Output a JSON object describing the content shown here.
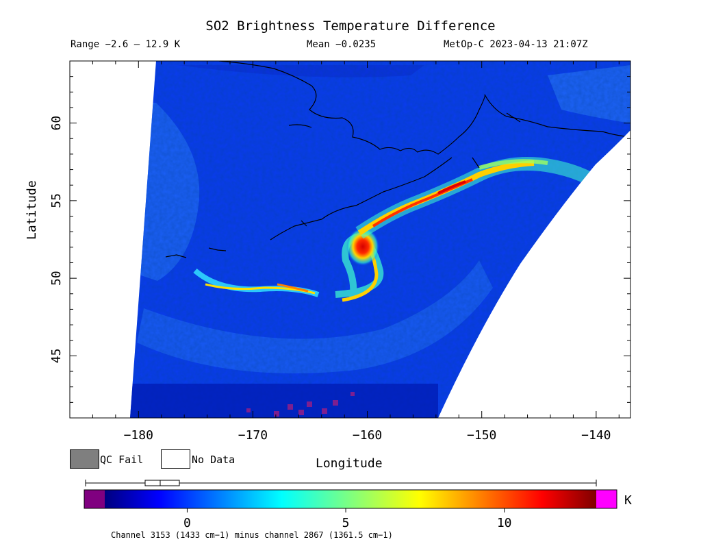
{
  "header": {
    "title": "SO2 Brightness Temperature Difference",
    "range": "Range −2.6 – 12.9 K",
    "mean": "Mean −0.0235",
    "satellite_time": "MetOp-C 2023-04-13 21:07Z"
  },
  "map": {
    "x_label": "Longitude",
    "y_label": "Latitude",
    "lon_range": [
      -186,
      -137
    ],
    "lat_range": [
      41,
      64
    ],
    "lon_ticks": [
      -180,
      -170,
      -160,
      -150,
      -140
    ],
    "lon_tick_labels": [
      "−180",
      "−170",
      "−160",
      "−150",
      "−140"
    ],
    "lat_ticks": [
      45,
      50,
      55,
      60
    ],
    "lat_tick_labels": [
      "45",
      "50",
      "55",
      "60"
    ],
    "plume_peak": {
      "lon": -161.5,
      "lat": 52.5,
      "value_K": 12.9
    }
  },
  "legend": {
    "qc_fail": "QC Fail",
    "no_data": "No Data",
    "qc_fail_color": "#7f7f7f",
    "no_data_color": "#ffffff"
  },
  "colorbar": {
    "min": -2.6,
    "max": 12.9,
    "ticks": [
      0,
      5,
      10
    ],
    "tick_labels": [
      "0",
      "5",
      "10"
    ],
    "unit": "K",
    "under_color": "#800080",
    "over_color": "#ff00ff"
  },
  "footnote": "Channel 3153 (1433 cm−1) minus channel 2867 (1361.5 cm−1)"
}
